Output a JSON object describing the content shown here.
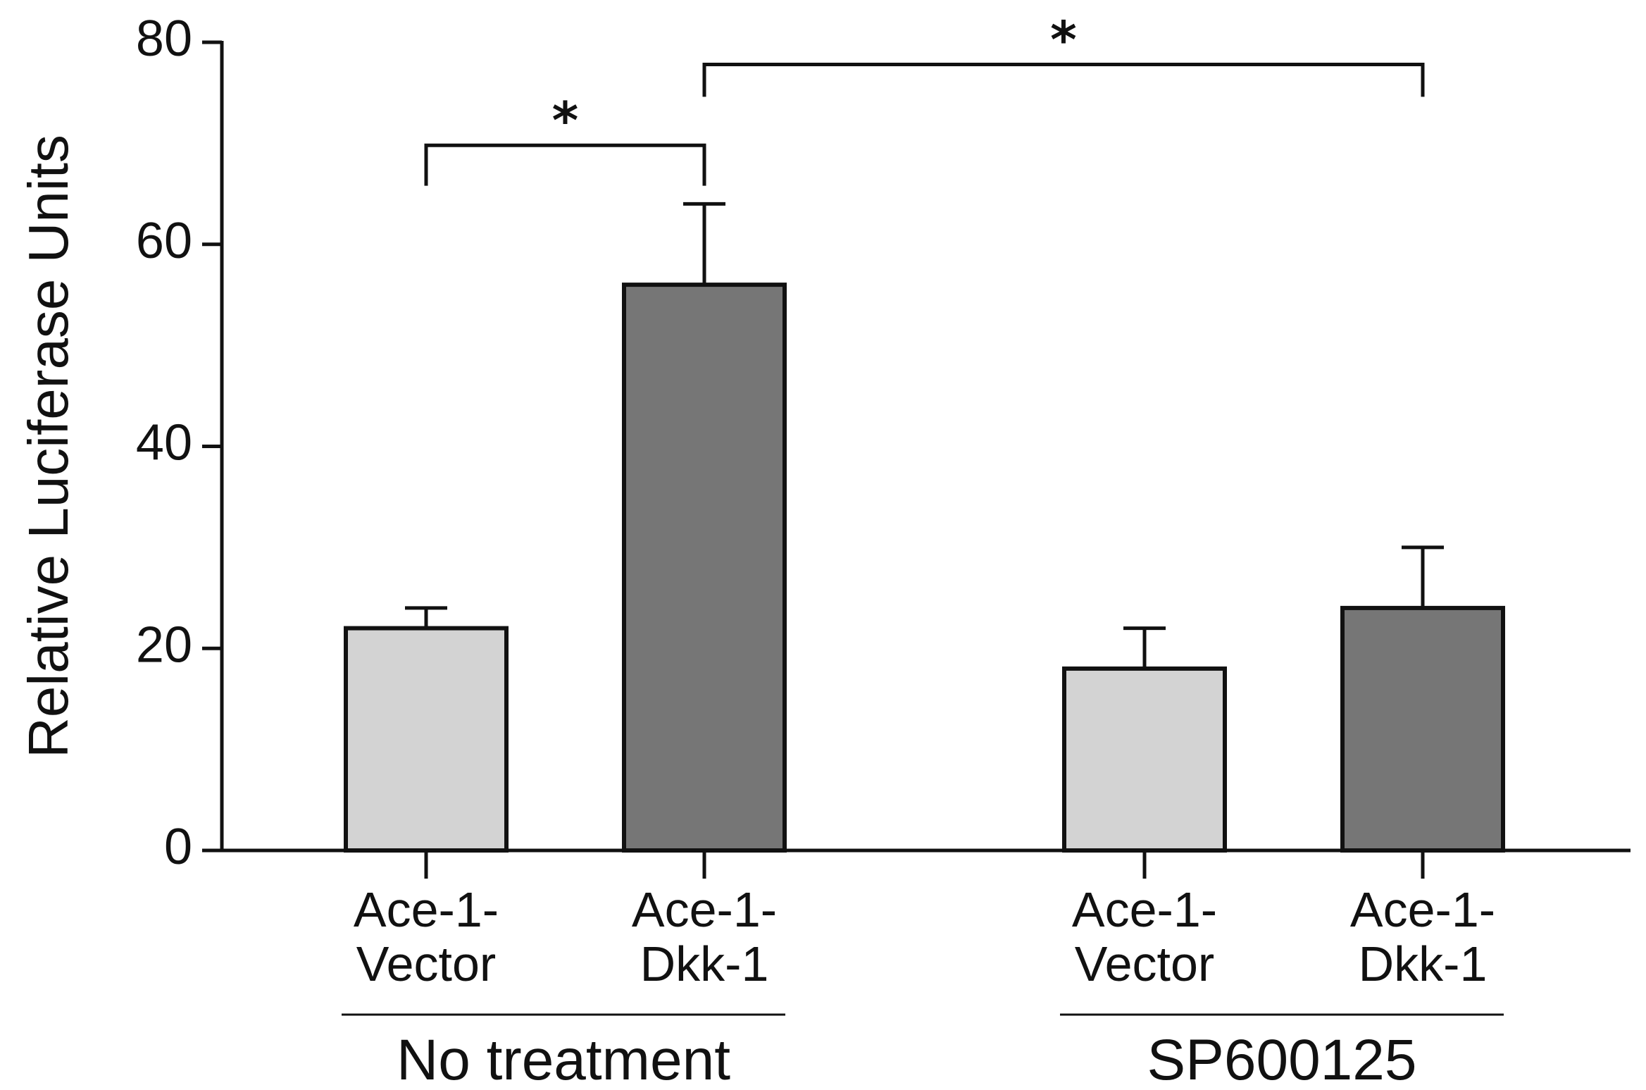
{
  "chart_data": {
    "type": "bar",
    "title": "",
    "xlabel": "",
    "ylabel": "Relative Luciferase Units",
    "ylim": [
      0,
      80
    ],
    "yticks": [
      0,
      20,
      40,
      60,
      80
    ],
    "grid": false,
    "categories": [
      {
        "line1": "Ace-1-",
        "line2": "Vector",
        "group": "No treatment",
        "value": 22,
        "error": 2,
        "color": "#d3d3d3"
      },
      {
        "line1": "Ace-1-",
        "line2": "Dkk-1",
        "group": "No treatment",
        "value": 56,
        "error": 8,
        "color": "#767676"
      },
      {
        "line1": "Ace-1-",
        "line2": "Vector",
        "group": "SP600125",
        "value": 18,
        "error": 4,
        "color": "#d3d3d3"
      },
      {
        "line1": "Ace-1-",
        "line2": "Dkk-1",
        "group": "SP600125",
        "value": 24,
        "error": 6,
        "color": "#767676"
      }
    ],
    "groups": [
      {
        "label": "No treatment",
        "bars": [
          0,
          1
        ]
      },
      {
        "label": "SP600125",
        "bars": [
          2,
          3
        ]
      }
    ],
    "significance": [
      {
        "from": 0,
        "to": 1,
        "label": "*"
      },
      {
        "from": 1,
        "to": 3,
        "label": "*"
      }
    ]
  }
}
